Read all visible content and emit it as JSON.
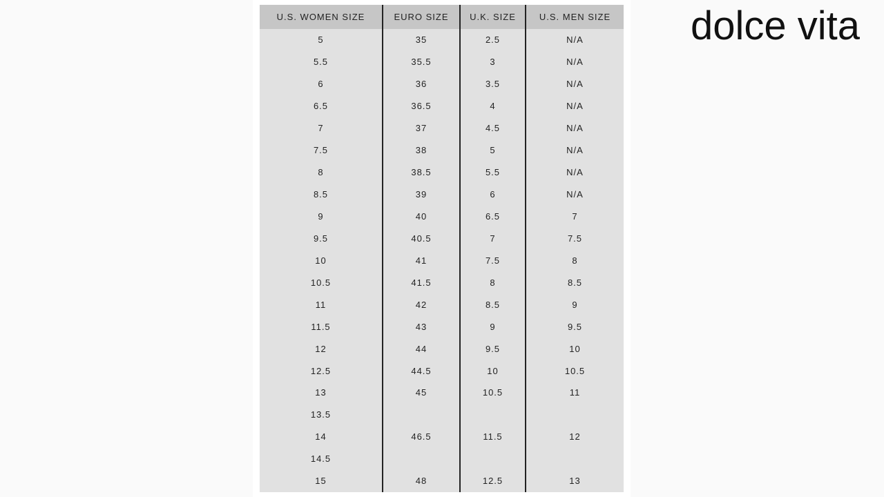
{
  "brand": "dolce vita",
  "table": {
    "headers": [
      "U.S. WOMEN SIZE",
      "EURO SIZE",
      "U.K. SIZE",
      "U.S. MEN SIZE"
    ],
    "rows": [
      [
        "5",
        "35",
        "2.5",
        "N/A"
      ],
      [
        "5.5",
        "35.5",
        "3",
        "N/A"
      ],
      [
        "6",
        "36",
        "3.5",
        "N/A"
      ],
      [
        "6.5",
        "36.5",
        "4",
        "N/A"
      ],
      [
        "7",
        "37",
        "4.5",
        "N/A"
      ],
      [
        "7.5",
        "38",
        "5",
        "N/A"
      ],
      [
        "8",
        "38.5",
        "5.5",
        "N/A"
      ],
      [
        "8.5",
        "39",
        "6",
        "N/A"
      ],
      [
        "9",
        "40",
        "6.5",
        "7"
      ],
      [
        "9.5",
        "40.5",
        "7",
        "7.5"
      ],
      [
        "10",
        "41",
        "7.5",
        "8"
      ],
      [
        "10.5",
        "41.5",
        "8",
        "8.5"
      ],
      [
        "11",
        "42",
        "8.5",
        "9"
      ],
      [
        "11.5",
        "43",
        "9",
        "9.5"
      ],
      [
        "12",
        "44",
        "9.5",
        "10"
      ],
      [
        "12.5",
        "44.5",
        "10",
        "10.5"
      ],
      [
        "13",
        "45",
        "10.5",
        "11"
      ],
      [
        "13.5",
        "",
        "",
        ""
      ],
      [
        "14",
        "46.5",
        "11.5",
        "12"
      ],
      [
        "14.5",
        "",
        "",
        ""
      ],
      [
        "15",
        "48",
        "12.5",
        "13"
      ]
    ]
  }
}
